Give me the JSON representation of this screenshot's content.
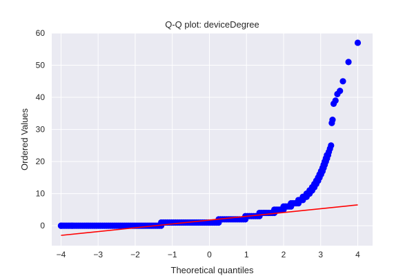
{
  "chart_data": {
    "type": "scatter",
    "title": "Q-Q plot: deviceDegree",
    "xlabel": "Theoretical quantiles",
    "ylabel": "Ordered Values",
    "xlim": [
      -4.25,
      4.4
    ],
    "ylim": [
      -6.2,
      60
    ],
    "xticks": [
      -4,
      -3,
      -2,
      -1,
      0,
      1,
      2,
      3,
      4
    ],
    "xtick_labels": [
      "−4",
      "−3",
      "−2",
      "−1",
      "0",
      "1",
      "2",
      "3",
      "4"
    ],
    "yticks": [
      0,
      10,
      20,
      30,
      40,
      50,
      60
    ],
    "ytick_labels": [
      "0",
      "10",
      "20",
      "30",
      "40",
      "50",
      "60"
    ],
    "grid": true,
    "colors": {
      "background": "#eaeaf2",
      "grid": "#ffffff",
      "points": "#0000ff",
      "fit_line": "#ff0000"
    },
    "steps": [
      {
        "x_start": -4.0,
        "x_end": -3.7,
        "y": 0
      },
      {
        "x_start": -3.7,
        "x_end": -1.3,
        "y": 0
      },
      {
        "x_start": -1.3,
        "x_end": 0.25,
        "y": 1
      },
      {
        "x_start": 0.25,
        "x_end": 0.97,
        "y": 2
      },
      {
        "x_start": 0.97,
        "x_end": 1.35,
        "y": 3
      },
      {
        "x_start": 1.35,
        "x_end": 1.75,
        "y": 4
      },
      {
        "x_start": 1.75,
        "x_end": 2.0,
        "y": 5
      },
      {
        "x_start": 2.0,
        "x_end": 2.2,
        "y": 6
      },
      {
        "x_start": 2.2,
        "x_end": 2.4,
        "y": 7
      },
      {
        "x_start": 2.4,
        "x_end": 2.52,
        "y": 8
      },
      {
        "x_start": 2.52,
        "x_end": 2.62,
        "y": 9
      },
      {
        "x_start": 2.62,
        "x_end": 2.7,
        "y": 10
      },
      {
        "x_start": 2.7,
        "x_end": 2.77,
        "y": 11
      },
      {
        "x_start": 2.77,
        "x_end": 2.83,
        "y": 12
      },
      {
        "x_start": 2.83,
        "x_end": 2.88,
        "y": 13
      },
      {
        "x_start": 2.88,
        "x_end": 2.93,
        "y": 14
      },
      {
        "x_start": 2.93,
        "x_end": 2.97,
        "y": 15
      },
      {
        "x_start": 2.97,
        "x_end": 3.01,
        "y": 16
      },
      {
        "x_start": 3.01,
        "x_end": 3.05,
        "y": 17
      },
      {
        "x_start": 3.05,
        "x_end": 3.08,
        "y": 18
      },
      {
        "x_start": 3.08,
        "x_end": 3.11,
        "y": 19
      },
      {
        "x_start": 3.11,
        "x_end": 3.14,
        "y": 20
      },
      {
        "x_start": 3.14,
        "x_end": 3.17,
        "y": 21
      },
      {
        "x_start": 3.17,
        "x_end": 3.2,
        "y": 22
      }
    ],
    "points": [
      {
        "x": -4.0,
        "y": 0
      },
      {
        "x": 3.22,
        "y": 23
      },
      {
        "x": 3.25,
        "y": 24
      },
      {
        "x": 3.28,
        "y": 25
      },
      {
        "x": 3.3,
        "y": 32
      },
      {
        "x": 3.32,
        "y": 33
      },
      {
        "x": 3.35,
        "y": 38
      },
      {
        "x": 3.4,
        "y": 39
      },
      {
        "x": 3.45,
        "y": 41
      },
      {
        "x": 3.52,
        "y": 42
      },
      {
        "x": 3.6,
        "y": 45
      },
      {
        "x": 3.75,
        "y": 51
      },
      {
        "x": 4.0,
        "y": 57
      }
    ],
    "fit_line": {
      "x": [
        -4.0,
        4.0
      ],
      "y": [
        -3.0,
        6.5
      ]
    }
  }
}
